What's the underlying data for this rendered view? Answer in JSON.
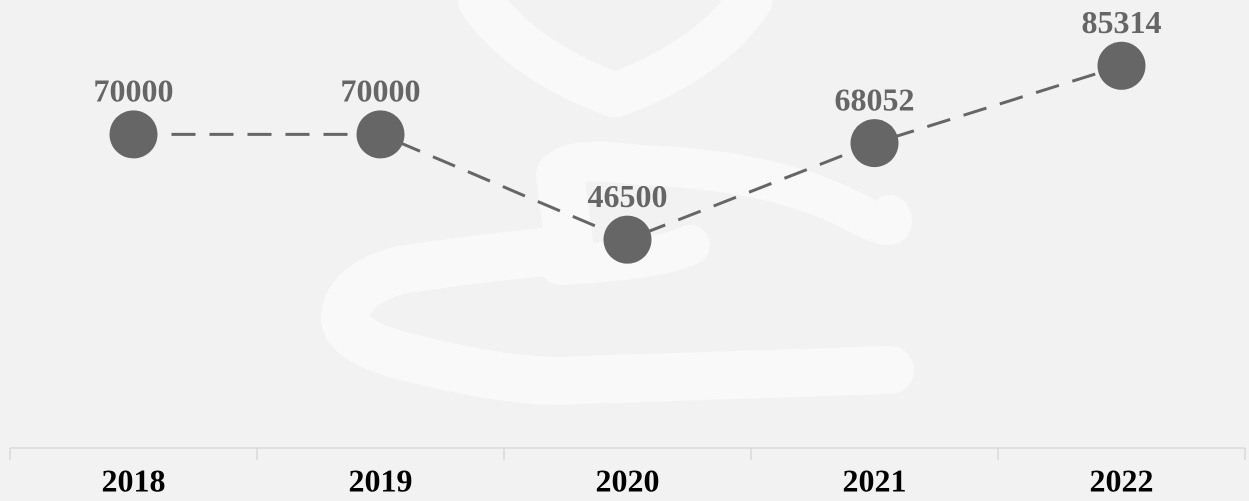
{
  "chart_data": {
    "type": "line",
    "categories": [
      "2018",
      "2019",
      "2020",
      "2021",
      "2022"
    ],
    "series": [
      {
        "values": [
          70000,
          70000,
          46500,
          68052,
          85314
        ],
        "color": "#666666"
      }
    ],
    "ylim": [
      0,
      100000
    ]
  }
}
